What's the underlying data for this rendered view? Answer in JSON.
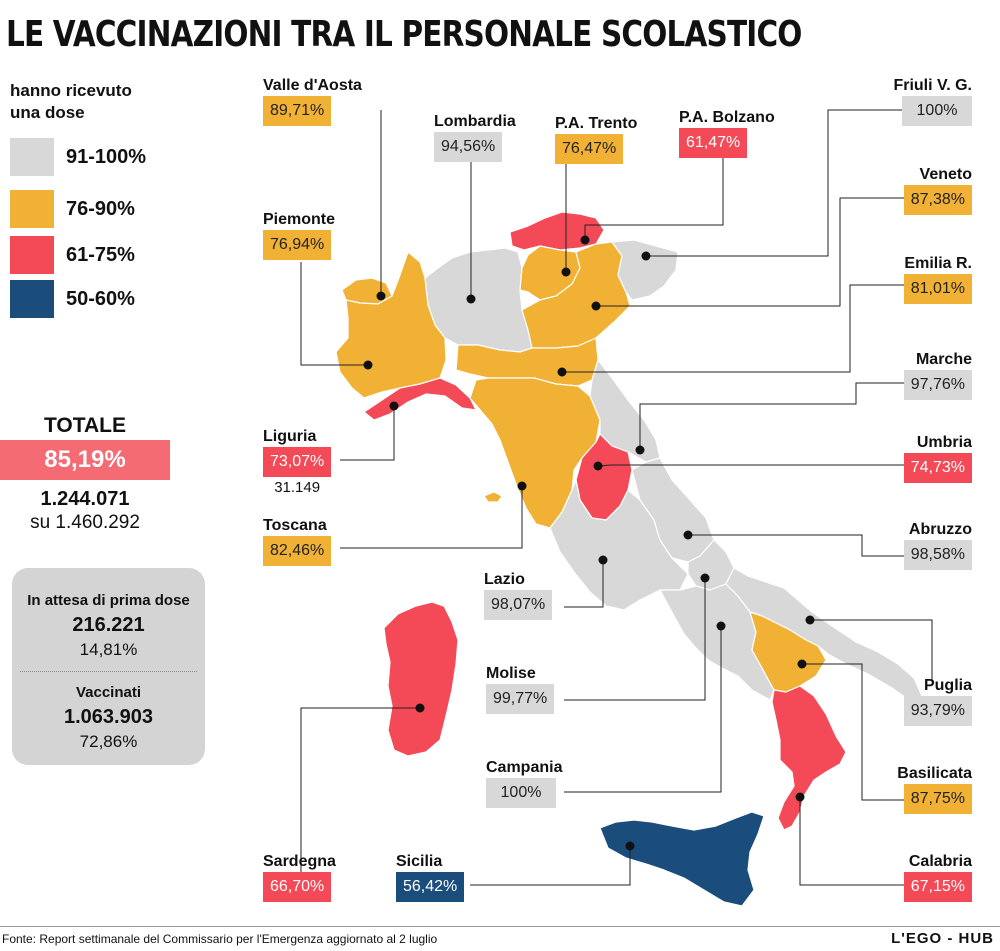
{
  "title": "LE VACCINAZIONI TRA IL PERSONALE SCOLASTICO",
  "colors": {
    "grey": "#d8d8d8",
    "orange": "#f1b135",
    "red": "#f44a57",
    "blue": "#1a4c7c",
    "total_bar": "#f56b73",
    "box_bg": "#d4d4d4"
  },
  "legend": {
    "title_line1": "hanno ricevuto",
    "title_line2": "una dose",
    "items": [
      {
        "label": "91-100%",
        "color": "#d8d8d8"
      },
      {
        "label": "76-90%",
        "color": "#f1b135"
      },
      {
        "label": "61-75%",
        "color": "#f44a57"
      },
      {
        "label": "50-60%",
        "color": "#1a4c7c"
      }
    ]
  },
  "totale": {
    "label": "TOTALE",
    "percent": "85,19%",
    "count": "1.244.071",
    "of_total": "su 1.460.292"
  },
  "box": {
    "waiting_label": "In attesa di prima dose",
    "waiting_count": "216.221",
    "waiting_percent": "14,81%",
    "vaccinated_label": "Vaccinati",
    "vaccinated_count": "1.063.903",
    "vaccinated_percent": "72,86%"
  },
  "regions": {
    "valle_daosta": {
      "name": "Valle d'Aosta",
      "value": "89,71%",
      "color": "#f1b135"
    },
    "lombardia": {
      "name": "Lombardia",
      "value": "94,56%",
      "color": "#d8d8d8"
    },
    "pa_trento": {
      "name": "P.A. Trento",
      "value": "76,47%",
      "color": "#f1b135"
    },
    "pa_bolzano": {
      "name": "P.A. Bolzano",
      "value": "61,47%",
      "color": "#f44a57"
    },
    "friuli": {
      "name": "Friuli V. G.",
      "value": "100%",
      "color": "#d8d8d8"
    },
    "piemonte": {
      "name": "Piemonte",
      "value": "76,94%",
      "color": "#f1b135"
    },
    "veneto": {
      "name": "Veneto",
      "value": "87,38%",
      "color": "#f1b135"
    },
    "emilia": {
      "name": "Emilia R.",
      "value": "81,01%",
      "color": "#f1b135"
    },
    "marche": {
      "name": "Marche",
      "value": "97,76%",
      "color": "#d8d8d8"
    },
    "liguria": {
      "name": "Liguria",
      "value": "73,07%",
      "extra": "31.149",
      "color": "#f44a57"
    },
    "umbria": {
      "name": "Umbria",
      "value": "74,73%",
      "color": "#f44a57"
    },
    "toscana": {
      "name": "Toscana",
      "value": "82,46%",
      "color": "#f1b135"
    },
    "abruzzo": {
      "name": "Abruzzo",
      "value": "98,58%",
      "color": "#d8d8d8"
    },
    "lazio": {
      "name": "Lazio",
      "value": "98,07%",
      "color": "#d8d8d8"
    },
    "molise": {
      "name": "Molise",
      "value": "99,77%",
      "color": "#d8d8d8"
    },
    "puglia": {
      "name": "Puglia",
      "value": "93,79%",
      "color": "#d8d8d8"
    },
    "campania": {
      "name": "Campania",
      "value": "100%",
      "color": "#d8d8d8"
    },
    "basilicata": {
      "name": "Basilicata",
      "value": "87,75%",
      "color": "#f1b135"
    },
    "sardegna": {
      "name": "Sardegna",
      "value": "66,70%",
      "color": "#f44a57"
    },
    "sicilia": {
      "name": "Sicilia",
      "value": "56,42%",
      "color": "#1a4c7c"
    },
    "calabria": {
      "name": "Calabria",
      "value": "67,15%",
      "color": "#f44a57"
    }
  },
  "footer": {
    "source": "Fonte: Report settimanale del Commissario per l'Emergenza aggiornato al 2 luglio",
    "brand": "L'EGO - HUB"
  }
}
